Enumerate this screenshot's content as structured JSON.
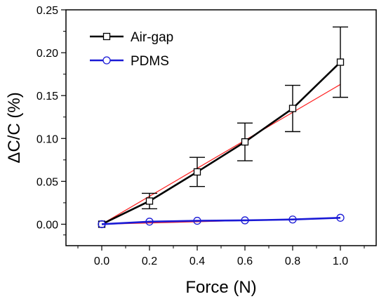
{
  "chart_data": {
    "type": "line",
    "title": "",
    "xlabel": "Force (N)",
    "ylabel": "ΔC/C (%)",
    "xlim": [
      -0.15,
      1.15
    ],
    "ylim": [
      -0.025,
      0.25
    ],
    "xticks": [
      0.0,
      0.2,
      0.4,
      0.6,
      0.8,
      1.0
    ],
    "xtick_labels": [
      "0.0",
      "0.2",
      "0.4",
      "0.6",
      "0.8",
      "1.0"
    ],
    "yticks": [
      0.0,
      0.05,
      0.1,
      0.15,
      0.2,
      0.25
    ],
    "ytick_labels": [
      "0.00",
      "0.05",
      "0.10",
      "0.15",
      "0.20",
      "0.25"
    ],
    "grid": false,
    "legend_position": "top-left",
    "series": [
      {
        "name": "Air-gap",
        "color": "#000000",
        "marker": "square",
        "x": [
          0.0,
          0.2,
          0.4,
          0.6,
          0.8,
          1.0
        ],
        "y": [
          0.0,
          0.027,
          0.061,
          0.096,
          0.135,
          0.189
        ],
        "error": [
          0.0,
          0.009,
          0.017,
          0.022,
          0.027,
          0.041
        ]
      },
      {
        "name": "PDMS",
        "color": "#1a1ad6",
        "marker": "circle",
        "x": [
          0.0,
          0.2,
          0.4,
          0.6,
          0.8,
          1.0
        ],
        "y": [
          0.0,
          0.003,
          0.004,
          0.0045,
          0.0055,
          0.0075
        ],
        "error": [
          0.0,
          0.001,
          0.001,
          0.001,
          0.001,
          0.001
        ]
      }
    ],
    "fit_lines": [
      {
        "color": "#ff2020",
        "x": [
          0.0,
          1.0
        ],
        "y": [
          0.0,
          0.163
        ]
      },
      {
        "color": "#ff2020",
        "x": [
          0.0,
          1.0
        ],
        "y": [
          0.0,
          0.0072
        ]
      }
    ]
  }
}
